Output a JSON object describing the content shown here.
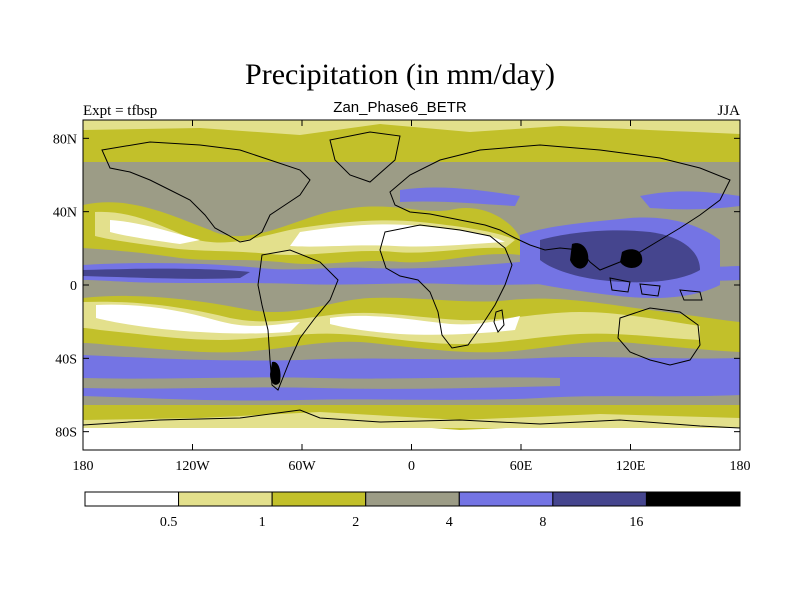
{
  "title": "Precipitation (in mm/day)",
  "subtitle": "Zan_Phase6_BETR",
  "left_label": "Expt = tfbsp",
  "right_label": "JJA",
  "lat_ticks": [
    "80N",
    "40N",
    "0",
    "40S",
    "80S"
  ],
  "lon_ticks": [
    "180",
    "120W",
    "60W",
    "0",
    "60E",
    "120E",
    "180"
  ],
  "colorbar": {
    "labels": [
      "0.5",
      "1",
      "2",
      "4",
      "8",
      "16"
    ],
    "colors": [
      "#ffffff",
      "#e3e08c",
      "#c2c02a",
      "#9c9c86",
      "#7474e4",
      "#45458e",
      "#000000"
    ]
  }
}
